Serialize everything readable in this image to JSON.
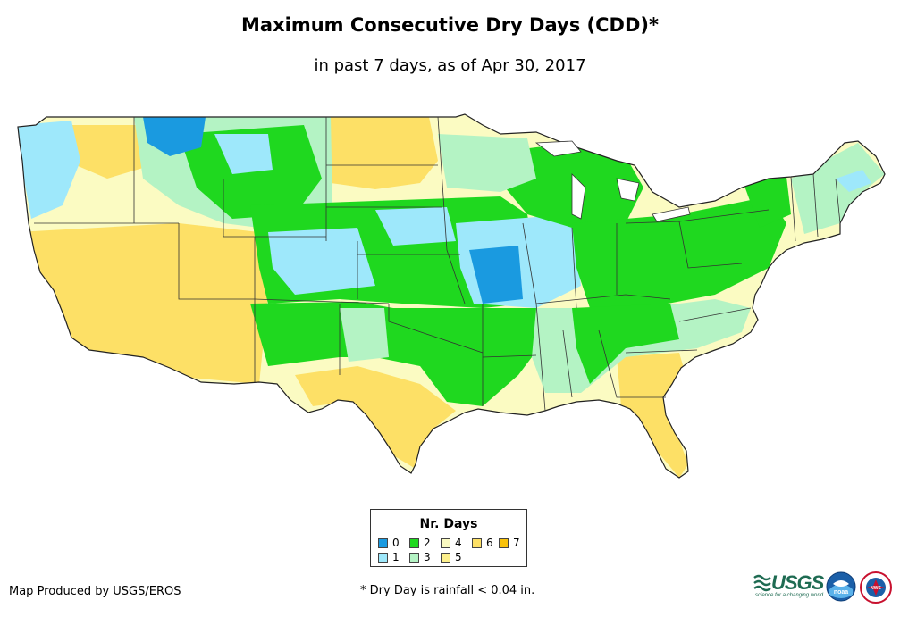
{
  "title": "Maximum Consecutive Dry Days (CDD)*",
  "subtitle": "in past 7 days, as of Apr 30, 2017",
  "legend": {
    "title": "Nr. Days",
    "items": [
      {
        "label": "0",
        "color": "#1a9ae0"
      },
      {
        "label": "1",
        "color": "#9ee8fb"
      },
      {
        "label": "2",
        "color": "#1fd81f"
      },
      {
        "label": "3",
        "color": "#b4f3c4"
      },
      {
        "label": "4",
        "color": "#fbfbc2"
      },
      {
        "label": "5",
        "color": "#fdf08c"
      },
      {
        "label": "6",
        "color": "#fde066"
      },
      {
        "label": "7",
        "color": "#f8c20b"
      }
    ]
  },
  "footer": {
    "credit": "Map Produced by USGS/EROS",
    "note": "* Dry Day is rainfall < 0.04 in."
  },
  "logos": {
    "usgs_word": "USGS",
    "usgs_tagline": "science for a changing world",
    "noaa_label": "noaa",
    "nws_label": "NWS"
  }
}
